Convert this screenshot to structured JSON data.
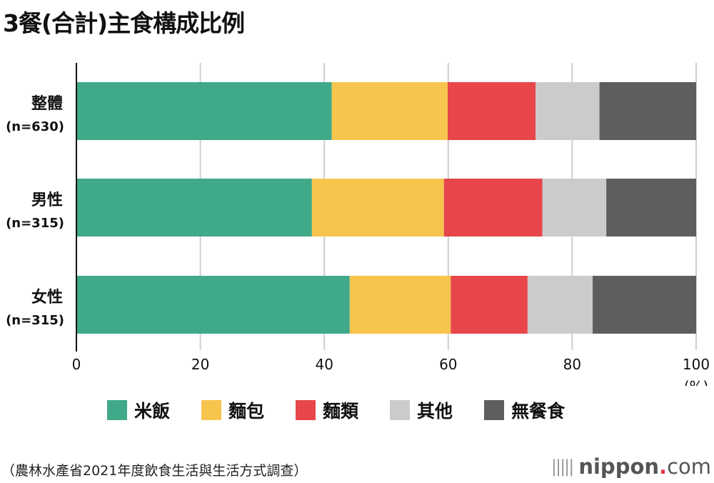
{
  "chart_data": {
    "type": "bar",
    "stacked": true,
    "orientation": "horizontal",
    "title": "3餐(合計)主食構成比例",
    "categories": [
      {
        "name": "整體",
        "n": "(n=630)"
      },
      {
        "name": "男性",
        "n": "(n=315)"
      },
      {
        "name": "女性",
        "n": "(n=315)"
      }
    ],
    "series": [
      {
        "name": "米飯",
        "color": "#40a98a",
        "values": [
          41.2,
          38.0,
          44.1
        ]
      },
      {
        "name": "麵包",
        "color": "#f7c54e",
        "values": [
          18.7,
          21.3,
          16.3
        ]
      },
      {
        "name": "麵類",
        "color": "#e7464a",
        "values": [
          14.2,
          15.9,
          12.4
        ]
      },
      {
        "name": "其他",
        "color": "#cbcbcb",
        "values": [
          10.3,
          10.3,
          10.5
        ]
      },
      {
        "name": "無餐食",
        "color": "#5e5e5e",
        "values": [
          15.6,
          14.5,
          16.7
        ]
      }
    ],
    "xlim": [
      0,
      100
    ],
    "xticks": [
      "0",
      "20",
      "40",
      "60",
      "80",
      "100"
    ],
    "xunit": "(%)",
    "grid": true,
    "legend": "bottom"
  },
  "source": "（農林水產省2021年度飲食生活與生活方式調查）",
  "logo": {
    "name": "nippon",
    "dot": ".",
    "com": "com"
  }
}
